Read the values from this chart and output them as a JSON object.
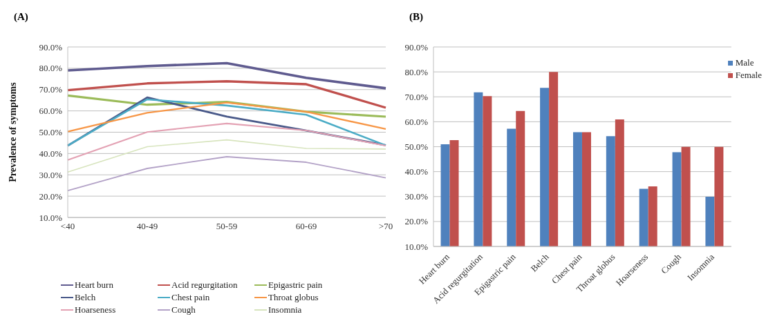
{
  "chart_data": [
    {
      "type": "line",
      "title": "(A)",
      "ylabel": "Prevalence of symptoms",
      "categories": [
        "<40",
        "40-49",
        "50-59",
        "60-69",
        ">70"
      ],
      "legend": "bottom",
      "grid": "y",
      "marker": "none",
      "line_style": "solid",
      "ylim": [
        10,
        90
      ],
      "yticks": [
        {
          "value": 10,
          "label": "10.0%"
        },
        {
          "value": 20,
          "label": "20.0%"
        },
        {
          "value": 30,
          "label": "30.0%"
        },
        {
          "value": 40,
          "label": "40.0%"
        },
        {
          "value": 50,
          "label": "50.0%"
        },
        {
          "value": 60,
          "label": "60.0%"
        },
        {
          "value": 70,
          "label": "70.0%"
        },
        {
          "value": 80,
          "label": "80.0%"
        },
        {
          "value": 90,
          "label": "90.0%"
        }
      ],
      "series": [
        {
          "name": "Heart burn",
          "color": "#5f5b8f",
          "values": [
            79.0,
            81.0,
            82.4,
            75.5,
            70.6
          ]
        },
        {
          "name": "Acid regurgitation",
          "color": "#c0504d",
          "values": [
            69.7,
            72.9,
            73.9,
            72.5,
            61.5
          ]
        },
        {
          "name": "Epigastric pain",
          "color": "#9bbb59",
          "values": [
            67.2,
            62.9,
            64.2,
            59.6,
            57.3
          ]
        },
        {
          "name": "Belch",
          "color": "#4a5a8a",
          "values": [
            43.7,
            66.3,
            57.3,
            50.8,
            43.9
          ]
        },
        {
          "name": "Chest pain",
          "color": "#4bacc6",
          "values": [
            43.7,
            65.4,
            62.5,
            58.2,
            43.8
          ]
        },
        {
          "name": "Throat globus",
          "color": "#f79646",
          "values": [
            50.3,
            59.1,
            63.9,
            59.6,
            51.5
          ]
        },
        {
          "name": "Hoarseness",
          "color": "#e3a1b3",
          "values": [
            37.0,
            50.1,
            54.1,
            50.8,
            43.7
          ]
        },
        {
          "name": "Cough",
          "color": "#b3a2c7",
          "values": [
            22.6,
            33.0,
            38.5,
            35.9,
            28.6
          ]
        },
        {
          "name": "Insomnia",
          "color": "#d7e4bd",
          "values": [
            31.3,
            43.2,
            46.4,
            42.4,
            42.1
          ]
        }
      ]
    },
    {
      "type": "bar",
      "title": "(B)",
      "categories": [
        "Heart burn",
        "Acid regurgitation",
        "Epigastric pain",
        "Belch",
        "Chest pain",
        "Throat globus",
        "Hoarseness",
        "Cough",
        "Insomnia"
      ],
      "legend": "top right",
      "grid": "y",
      "ylim": [
        10,
        90
      ],
      "yticks": [
        {
          "value": 10,
          "label": "10.0%"
        },
        {
          "value": 20,
          "label": "20.0%"
        },
        {
          "value": 30,
          "label": "30.0%"
        },
        {
          "value": 40,
          "label": "40.0%"
        },
        {
          "value": 50,
          "label": "50.0%"
        },
        {
          "value": 60,
          "label": "60.0%"
        },
        {
          "value": 70,
          "label": "70.0%"
        },
        {
          "value": 80,
          "label": "80.0%"
        },
        {
          "value": 90,
          "label": "90.0%"
        }
      ],
      "series": [
        {
          "name": "Male",
          "color": "#4f81bd",
          "values": [
            51.0,
            71.8,
            57.2,
            73.6,
            55.8,
            54.2,
            33.1,
            47.8,
            29.9
          ]
        },
        {
          "name": "Female",
          "color": "#c0504d",
          "values": [
            52.6,
            70.3,
            64.3,
            80.0,
            55.8,
            60.9,
            34.1,
            49.9,
            49.9
          ]
        }
      ]
    }
  ]
}
